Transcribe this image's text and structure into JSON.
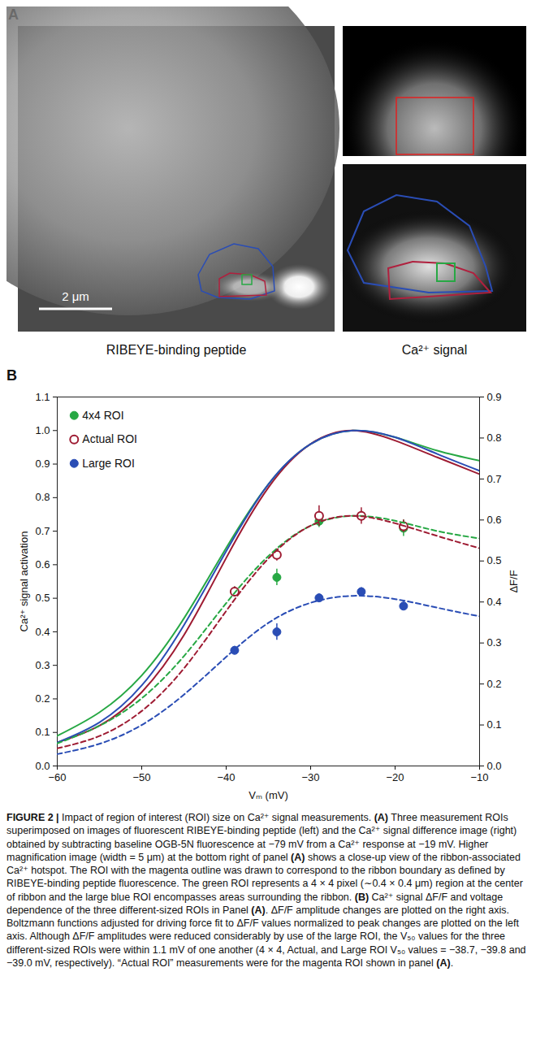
{
  "panel_a": {
    "letter": "A",
    "scale_bar": "2 μm",
    "image_labels": [
      "RIBEYE-binding peptide",
      "Ca²⁺ signal"
    ]
  },
  "panel_b_letter": "B",
  "chart_data": {
    "type": "line",
    "xlabel": "Vₘ (mV)",
    "ylabel": "Ca²⁺ signal activation",
    "y2label": "ΔF/F",
    "xlim": [
      -60,
      -10
    ],
    "xticks": [
      -60,
      -50,
      -40,
      -30,
      -20,
      -10
    ],
    "ylim": [
      0,
      1.1
    ],
    "yticks": [
      {
        "value": 0,
        "label": "0.0"
      },
      0.1,
      0.2,
      0.3,
      0.4,
      0.5,
      0.6,
      0.7,
      0.8,
      0.9,
      {
        "value": 1,
        "label": "1.0"
      },
      1.1
    ],
    "y2lim": [
      0,
      0.9
    ],
    "y2ticks": [
      {
        "value": 0,
        "label": "0.0"
      },
      0.1,
      0.2,
      0.3,
      0.4,
      0.5,
      0.6,
      0.7,
      0.8,
      0.9
    ],
    "legend": "top-left",
    "series": [
      {
        "type": "scatter",
        "name": "4x4 ROI",
        "color": "#27a844",
        "marker": "circle",
        "axis": "y2",
        "x": [
          -39,
          -34,
          -29,
          -24,
          -19
        ],
        "values": [
          0.425,
          0.46,
          0.597,
          0.61,
          0.58
        ],
        "errors": [
          0.012,
          0.02,
          0.015,
          0.012,
          0.02
        ]
      },
      {
        "type": "scatter",
        "name": "Actual ROI",
        "color": "#9e1b32",
        "marker": "open circle",
        "axis": "y2",
        "x": [
          -39,
          -34,
          -29,
          -24,
          -19
        ],
        "values": [
          0.425,
          0.515,
          0.61,
          0.61,
          0.585
        ],
        "errors": [
          0.012,
          0.015,
          0.025,
          0.02,
          0.015
        ]
      },
      {
        "type": "scatter",
        "name": "Large ROI",
        "color": "#2a4db5",
        "marker": "circle",
        "axis": "y2",
        "x": [
          -39,
          -34,
          -29,
          -24,
          -19
        ],
        "values": [
          0.282,
          0.327,
          0.41,
          0.425,
          0.39
        ],
        "errors": [
          0.01,
          0.02,
          0.01,
          0.01,
          0.01
        ]
      },
      {
        "type": "line",
        "color": "#27a844",
        "line_style": "solid",
        "x": [
          -60,
          -55,
          -50,
          -45,
          -40,
          -35,
          -30,
          -25,
          -20,
          -15,
          -10
        ],
        "values": [
          0.09,
          0.16,
          0.27,
          0.44,
          0.65,
          0.84,
          0.96,
          1.0,
          0.98,
          0.94,
          0.91
        ]
      },
      {
        "type": "line",
        "color": "#9e1b32",
        "line_style": "solid",
        "x": [
          -60,
          -55,
          -50,
          -45,
          -40,
          -35,
          -30,
          -25,
          -20,
          -15,
          -10
        ],
        "values": [
          0.07,
          0.12,
          0.22,
          0.39,
          0.62,
          0.83,
          0.96,
          1.0,
          0.97,
          0.92,
          0.87
        ]
      },
      {
        "type": "line",
        "color": "#2a4db5",
        "line_style": "solid",
        "x": [
          -60,
          -55,
          -50,
          -45,
          -40,
          -35,
          -30,
          -25,
          -20,
          -15,
          -10
        ],
        "values": [
          0.07,
          0.13,
          0.24,
          0.42,
          0.64,
          0.84,
          0.96,
          1.0,
          0.98,
          0.93,
          0.88
        ]
      },
      {
        "type": "line",
        "color": "#27a844",
        "line_style": "dashed",
        "axis": "y2",
        "x": [
          -60,
          -55,
          -50,
          -45,
          -40,
          -35,
          -30,
          -25,
          -20,
          -15,
          -10
        ],
        "values": [
          0.055,
          0.098,
          0.165,
          0.268,
          0.397,
          0.512,
          0.586,
          0.61,
          0.598,
          0.573,
          0.555
        ]
      },
      {
        "type": "line",
        "color": "#9e1b32",
        "line_style": "dashed",
        "axis": "y2",
        "x": [
          -60,
          -55,
          -50,
          -45,
          -40,
          -35,
          -30,
          -25,
          -20,
          -15,
          -10
        ],
        "values": [
          0.043,
          0.073,
          0.134,
          0.238,
          0.378,
          0.506,
          0.586,
          0.61,
          0.592,
          0.561,
          0.531
        ]
      },
      {
        "type": "line",
        "color": "#2a4db5",
        "line_style": "dashed",
        "axis": "y2",
        "x": [
          -60,
          -55,
          -50,
          -45,
          -40,
          -35,
          -30,
          -25,
          -20,
          -15,
          -10
        ],
        "values": [
          0.029,
          0.054,
          0.1,
          0.174,
          0.266,
          0.349,
          0.398,
          0.415,
          0.407,
          0.386,
          0.365
        ]
      }
    ]
  },
  "caption": [
    {
      "text": "FIGURE 2 |",
      "bold": true
    },
    {
      "text": " Impact of region of interest (ROI) size on Ca²⁺ signal measurements. "
    },
    {
      "text": "(A)",
      "bold": true
    },
    {
      "text": " Three measurement ROIs superimposed on images of fluorescent RIBEYE-binding peptide (left) and the Ca²⁺ signal difference image (right) obtained by subtracting baseline OGB-5N fluorescence at −79 mV from a Ca²⁺ response at −19 mV. Higher magnification image (width = 5 μm) at the bottom right of panel "
    },
    {
      "text": "(A)",
      "bold": true
    },
    {
      "text": " shows a close-up view of the ribbon-associated Ca²⁺ hotspot. The ROI with the magenta outline was drawn to correspond to the ribbon boundary as defined by RIBEYE-binding peptide fluorescence. The green ROI represents a 4 × 4 pixel (∼0.4 × 0.4 μm) region at the center of ribbon and the large blue ROI encompasses areas surrounding the ribbon. "
    },
    {
      "text": "(B)",
      "bold": true
    },
    {
      "text": " Ca²⁺ signal ΔF/F and voltage dependence of the three different-sized ROIs in Panel "
    },
    {
      "text": "(A)",
      "bold": true
    },
    {
      "text": ". ΔF/F amplitude changes are plotted on the right axis. Boltzmann functions adjusted for driving force fit to ΔF/F values normalized to peak changes are plotted on the left axis. Although ΔF/F amplitudes were reduced considerably by use of the large ROI, the V₅₀ values for the three different-sized ROIs were within 1.1 mV of one another (4 × 4, Actual, and Large ROI V₅₀ values = −38.7, −39.8 and −39.0 mV, respectively). “Actual ROI” measurements were for the magenta ROI shown in panel "
    },
    {
      "text": "(A)",
      "bold": true
    },
    {
      "text": "."
    }
  ]
}
